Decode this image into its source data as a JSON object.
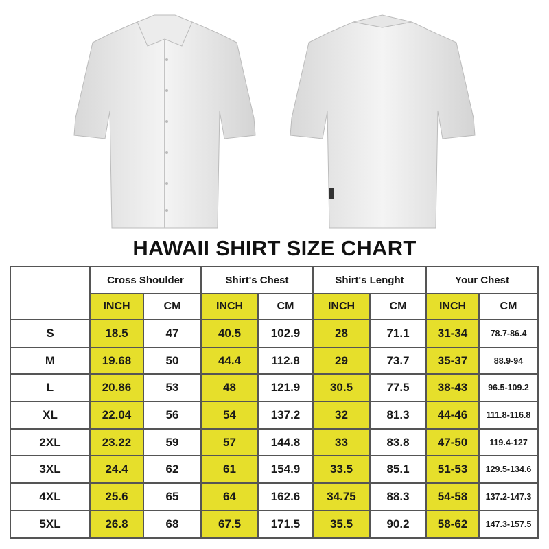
{
  "title": "HAWAII SHIRT SIZE CHART",
  "colors": {
    "highlight": "#e6df2b",
    "border": "#555555"
  },
  "images": [
    "shirt-front",
    "shirt-back"
  ],
  "columns": [
    "Cross Shoulder",
    "Shirt's Chest",
    "Shirt's Lenght",
    "Your Chest"
  ],
  "units": {
    "inch": "INCH",
    "cm": "CM"
  },
  "rows": [
    {
      "size": "S",
      "cs_in": "18.5",
      "cs_cm": "47",
      "ch_in": "40.5",
      "ch_cm": "102.9",
      "len_in": "28",
      "len_cm": "71.1",
      "yc_in": "31-34",
      "yc_cm": "78.7-86.4"
    },
    {
      "size": "M",
      "cs_in": "19.68",
      "cs_cm": "50",
      "ch_in": "44.4",
      "ch_cm": "112.8",
      "len_in": "29",
      "len_cm": "73.7",
      "yc_in": "35-37",
      "yc_cm": "88.9-94"
    },
    {
      "size": "L",
      "cs_in": "20.86",
      "cs_cm": "53",
      "ch_in": "48",
      "ch_cm": "121.9",
      "len_in": "30.5",
      "len_cm": "77.5",
      "yc_in": "38-43",
      "yc_cm": "96.5-109.2"
    },
    {
      "size": "XL",
      "cs_in": "22.04",
      "cs_cm": "56",
      "ch_in": "54",
      "ch_cm": "137.2",
      "len_in": "32",
      "len_cm": "81.3",
      "yc_in": "44-46",
      "yc_cm": "111.8-116.8"
    },
    {
      "size": "2XL",
      "cs_in": "23.22",
      "cs_cm": "59",
      "ch_in": "57",
      "ch_cm": "144.8",
      "len_in": "33",
      "len_cm": "83.8",
      "yc_in": "47-50",
      "yc_cm": "119.4-127"
    },
    {
      "size": "3XL",
      "cs_in": "24.4",
      "cs_cm": "62",
      "ch_in": "61",
      "ch_cm": "154.9",
      "len_in": "33.5",
      "len_cm": "85.1",
      "yc_in": "51-53",
      "yc_cm": "129.5-134.6"
    },
    {
      "size": "4XL",
      "cs_in": "25.6",
      "cs_cm": "65",
      "ch_in": "64",
      "ch_cm": "162.6",
      "len_in": "34.75",
      "len_cm": "88.3",
      "yc_in": "54-58",
      "yc_cm": "137.2-147.3"
    },
    {
      "size": "5XL",
      "cs_in": "26.8",
      "cs_cm": "68",
      "ch_in": "67.5",
      "ch_cm": "171.5",
      "len_in": "35.5",
      "len_cm": "90.2",
      "yc_in": "58-62",
      "yc_cm": "147.3-157.5"
    }
  ]
}
